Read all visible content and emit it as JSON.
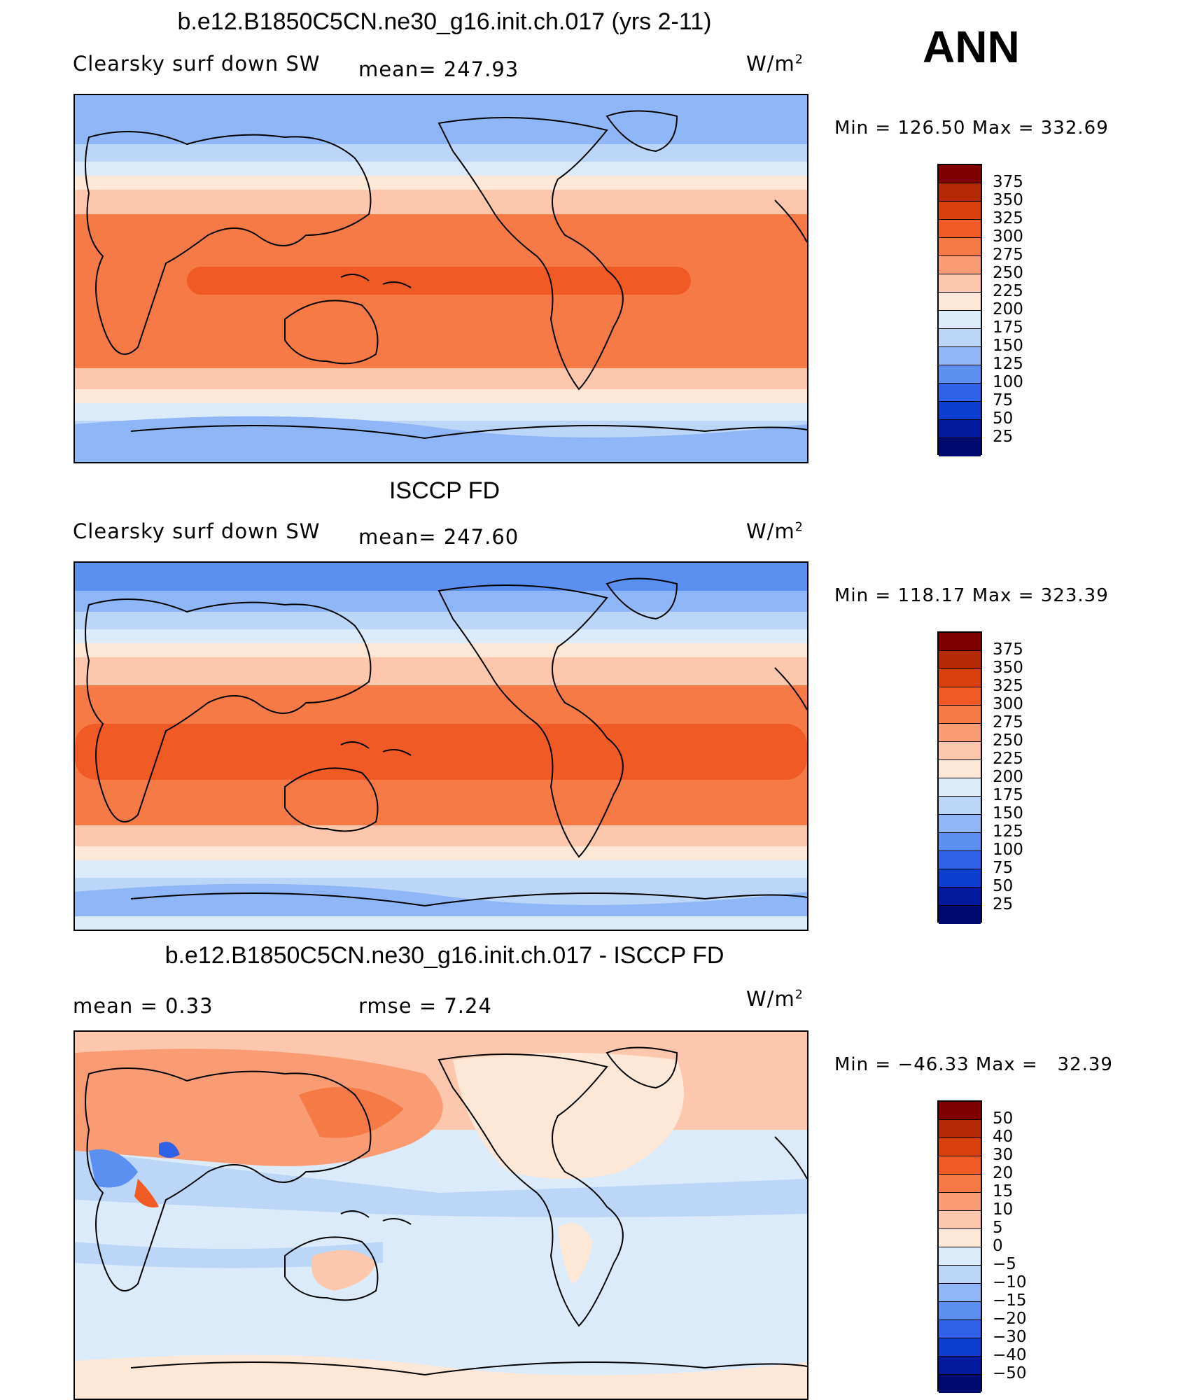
{
  "season": "ANN",
  "units_base": "W/m",
  "units_exp": "2",
  "panels": [
    {
      "title": "b.e12.B1850C5CN.ne30_g16.init.ch.017 (yrs 2-11)",
      "left_label": "Clearsky surf down SW",
      "mid_label": "mean= 247.93",
      "minmax": "Min = 126.50 Max = 332.69",
      "levels": [
        "375",
        "350",
        "325",
        "300",
        "275",
        "250",
        "225",
        "200",
        "175",
        "150",
        "125",
        "100",
        "75",
        "50",
        "25"
      ]
    },
    {
      "title": "ISCCP FD",
      "left_label": "Clearsky surf down SW",
      "mid_label": "mean= 247.60",
      "minmax": "Min = 118.17 Max = 323.39",
      "levels": [
        "375",
        "350",
        "325",
        "300",
        "275",
        "250",
        "225",
        "200",
        "175",
        "150",
        "125",
        "100",
        "75",
        "50",
        "25"
      ]
    },
    {
      "title": "b.e12.B1850C5CN.ne30_g16.init.ch.017 - ISCCP FD",
      "left_label": "mean =    0.33",
      "mid_label": "rmse =    7.24",
      "minmax": "Min = −46.33 Max =   32.39",
      "levels": [
        "50",
        "40",
        "30",
        "20",
        "15",
        "10",
        "5",
        "0",
        "−5",
        "−10",
        "−15",
        "−20",
        "−30",
        "−40",
        "−50"
      ]
    }
  ],
  "colors": {
    "scale": [
      "#800000",
      "#b52a05",
      "#d9400e",
      "#f05a24",
      "#f57a45",
      "#f99c73",
      "#fdc7ad",
      "#fde8d8",
      "#dcebfa",
      "#bcd6f8",
      "#8fb6f6",
      "#5b8ff0",
      "#2f62e6",
      "#0c3ed0",
      "#041a9e",
      "#000a6e"
    ]
  }
}
